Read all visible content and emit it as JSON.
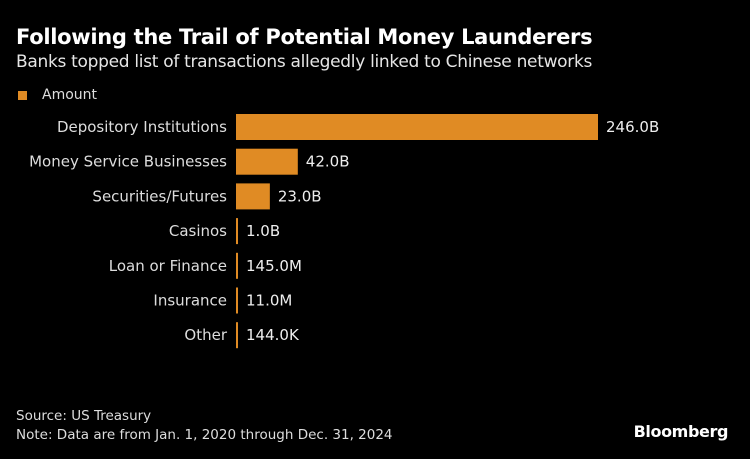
{
  "title": "Following the Trail of Potential Money Launderers",
  "subtitle": "Banks topped list of transactions allegedly linked to Chinese networks",
  "source": "Source: US Treasury",
  "note": "Note: Data are from Jan. 1, 2020 through Dec. 31, 2024",
  "brand": "Bloomberg",
  "colors": {
    "bar": "#e08b24",
    "background": "#000000"
  },
  "chart_data": {
    "type": "bar",
    "orientation": "horizontal",
    "categories": [
      "Depository Institutions",
      "Money Service Businesses",
      "Securities/Futures",
      "Casinos",
      "Loan or Finance",
      "Insurance",
      "Other"
    ],
    "series": [
      {
        "name": "Amount",
        "values": [
          246.0,
          42.0,
          23.0,
          1.0,
          0.145,
          0.011,
          0.000144
        ],
        "unit": "billion USD"
      }
    ],
    "data_labels": [
      "246.0B",
      "42.0B",
      "23.0B",
      "1.0B",
      "145.0M",
      "11.0M",
      "144.0K"
    ],
    "legend": {
      "position": "top-left",
      "entries": [
        "Amount"
      ]
    },
    "grid": false,
    "xlim": [
      0,
      246
    ]
  }
}
